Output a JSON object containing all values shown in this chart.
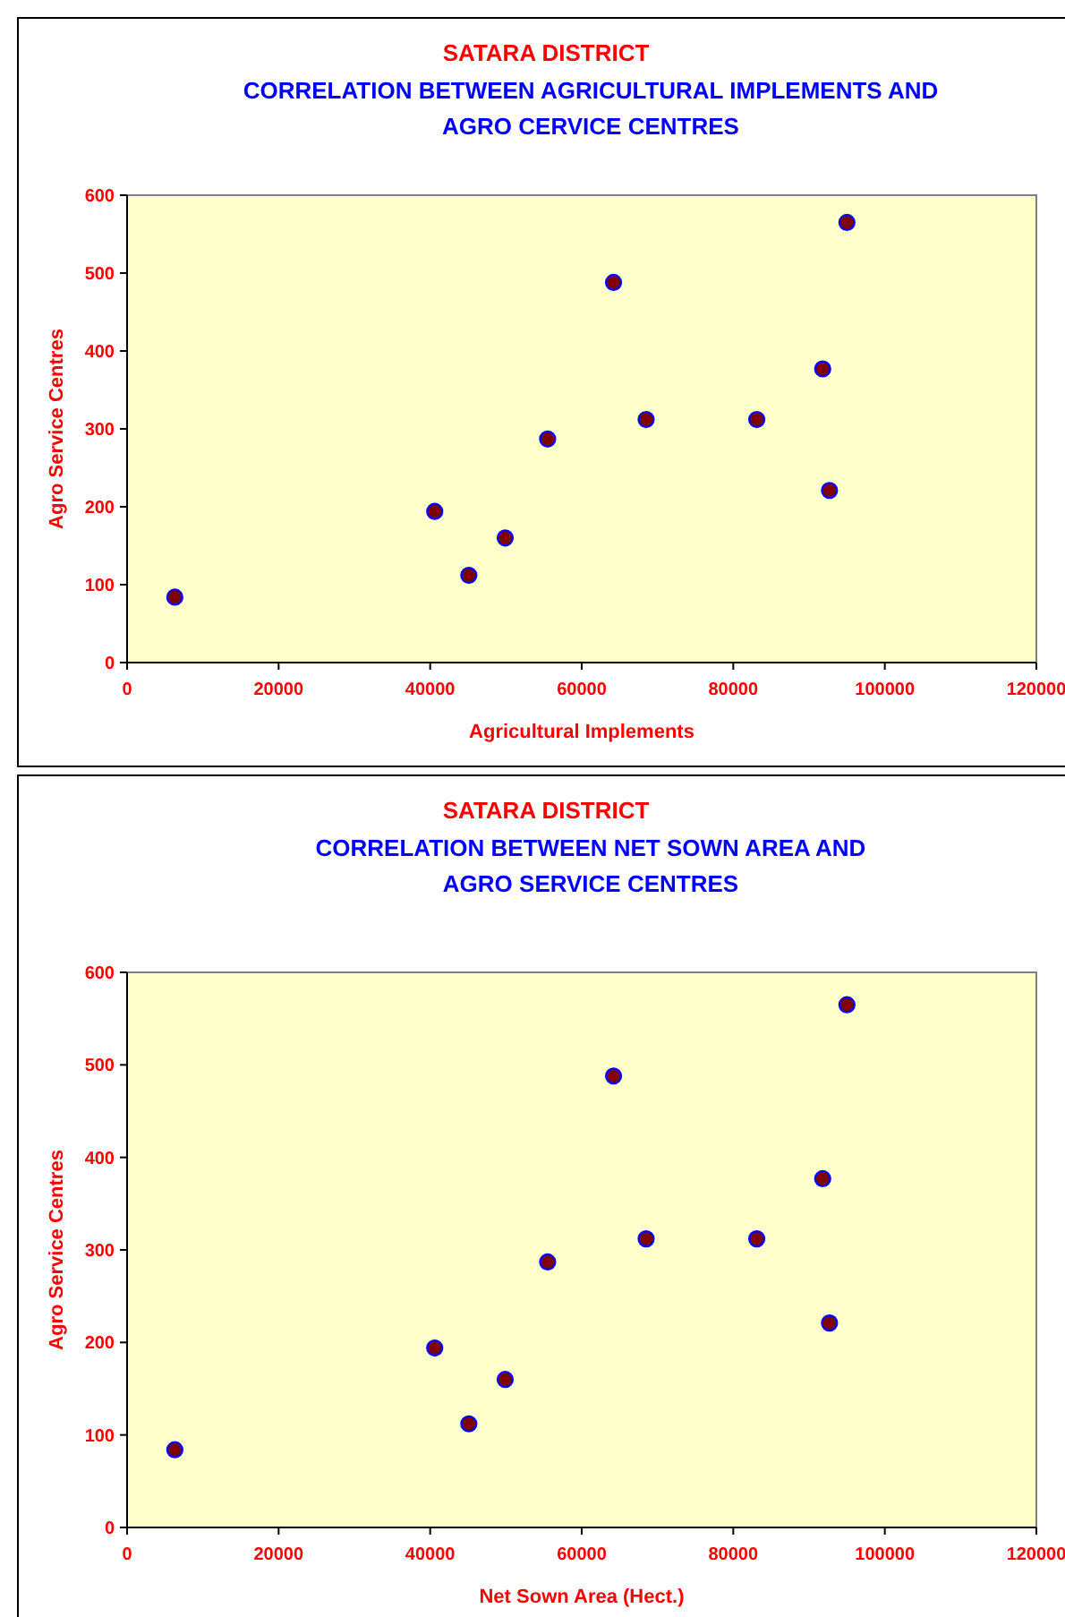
{
  "chart_data": [
    {
      "type": "scatter",
      "title": "SATARA DISTRICT",
      "subtitle": "CORRELATION BETWEEN AGRICULTURAL IMPLEMENTS AND\nAGRO CERVICE CENTRES",
      "xlabel": "Agricultural Implements",
      "ylabel": "Agro Service Centres",
      "series": [
        {
          "color": "#800000",
          "x": [
            6300,
            40600,
            45100,
            49900,
            55500,
            64200,
            68500,
            83100,
            91800,
            92700,
            95000
          ],
          "values": [
            84,
            194,
            112,
            160,
            287,
            488,
            312,
            312,
            377,
            221,
            565
          ]
        }
      ],
      "xlim": [
        0,
        120000
      ],
      "xticks": [
        0,
        20000,
        40000,
        60000,
        80000,
        100000,
        120000
      ],
      "ylim": [
        0,
        600
      ],
      "yticks": [
        0,
        100,
        200,
        300,
        400,
        500,
        600
      ],
      "marker": "circle"
    },
    {
      "type": "scatter",
      "title": "SATARA DISTRICT",
      "subtitle": "CORRELATION BETWEEN NET SOWN AREA AND\nAGRO SERVICE CENTRES",
      "xlabel": "Net Sown Area (Hect.)",
      "ylabel": "Agro Service Centres",
      "series": [
        {
          "color": "#800000",
          "x": [
            6300,
            40600,
            45100,
            49900,
            55500,
            64200,
            68500,
            83100,
            91800,
            92700,
            95000
          ],
          "values": [
            84,
            194,
            112,
            160,
            287,
            488,
            312,
            312,
            377,
            221,
            565
          ]
        }
      ],
      "xlim": [
        0,
        120000
      ],
      "xticks": [
        0,
        20000,
        40000,
        60000,
        80000,
        100000,
        120000
      ],
      "ylim": [
        0,
        600
      ],
      "yticks": [
        0,
        100,
        200,
        300,
        400,
        500,
        600
      ],
      "marker": "circle"
    }
  ]
}
